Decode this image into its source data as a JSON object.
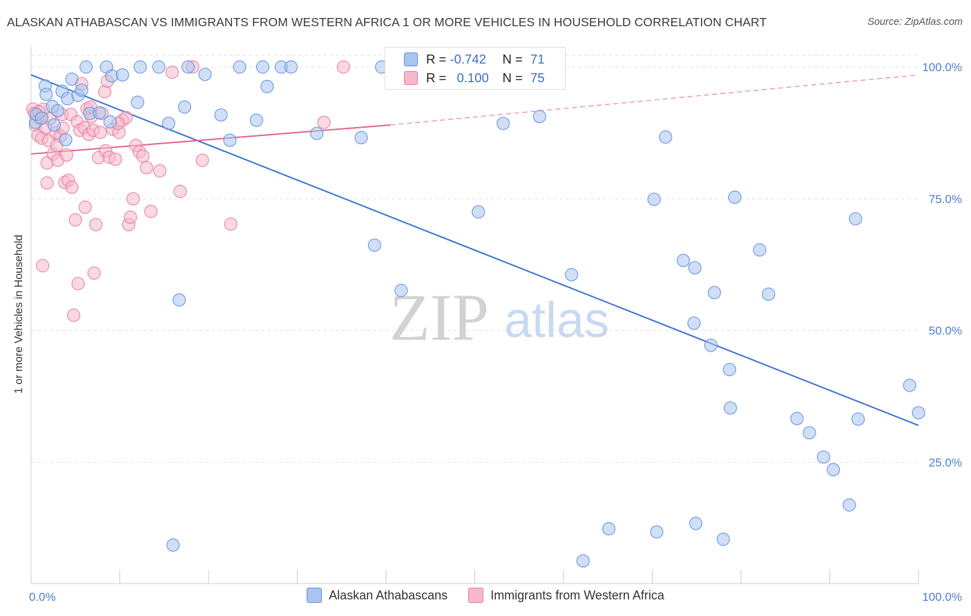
{
  "title": "ALASKAN ATHABASCAN VS IMMIGRANTS FROM WESTERN AFRICA 1 OR MORE VEHICLES IN HOUSEHOLD CORRELATION CHART",
  "source": "Source: ZipAtlas.com",
  "watermark": {
    "zip": "ZIP",
    "atlas": "atlas"
  },
  "colors": {
    "blue": "#5b8fdb",
    "blue_fill": "#a9c4ee",
    "blue_line": "#3a72d0",
    "pink": "#e8779c",
    "pink_fill": "#f6b9cc",
    "pink_line": "#e0648e",
    "axis_label": "#4a7fd0",
    "grid": "#e3e3e3"
  },
  "stats": {
    "r_label": "R =",
    "n_label": "N =",
    "rows": [
      {
        "series": "Alaskan Athabascans",
        "r": "-0.742",
        "n": "71"
      },
      {
        "series": "Immigrants from Western Africa",
        "r": "0.100",
        "n": "75"
      }
    ]
  },
  "chart_data": {
    "type": "scatter",
    "xlabel": "",
    "ylabel": "1 or more Vehicles in Household",
    "xlim": [
      0,
      100
    ],
    "ylim": [
      0,
      102
    ],
    "x_tick_labels": [
      "0.0%",
      "100.0%"
    ],
    "y_ticks": [
      25,
      50,
      75,
      100
    ],
    "y_tick_labels": [
      "25.0%",
      "50.0%",
      "75.0%",
      "100.0%"
    ],
    "grid": true,
    "legend": [
      "Alaskan Athabascans",
      "Immigrants from Western Africa"
    ],
    "series": [
      {
        "name": "Alaskan Athabascans",
        "color": "blue",
        "trend": {
          "x1": 0,
          "y1": 98.5,
          "x2": 100,
          "y2": 32.0,
          "dash_to": 100
        },
        "points": [
          [
            0.5,
            89.5
          ],
          [
            0.6,
            91
          ],
          [
            1.2,
            90.3
          ],
          [
            1.6,
            96.4
          ],
          [
            1.7,
            94.8
          ],
          [
            2.4,
            92.5
          ],
          [
            2.6,
            89
          ],
          [
            3.0,
            91.7
          ],
          [
            3.5,
            95.4
          ],
          [
            3.9,
            86.2
          ],
          [
            4.1,
            94
          ],
          [
            4.6,
            97.7
          ],
          [
            5.3,
            94.6
          ],
          [
            5.7,
            95.6
          ],
          [
            6.2,
            100
          ],
          [
            6.6,
            91.2
          ],
          [
            7.7,
            91.3
          ],
          [
            8.5,
            100
          ],
          [
            8.9,
            89.6
          ],
          [
            9.1,
            98.3
          ],
          [
            10.3,
            98.5
          ],
          [
            12.0,
            93.3
          ],
          [
            12.3,
            100
          ],
          [
            14.4,
            100
          ],
          [
            15.5,
            89.3
          ],
          [
            16.0,
            9.3
          ],
          [
            16.7,
            55.8
          ],
          [
            17.3,
            92.4
          ],
          [
            17.7,
            100
          ],
          [
            19.6,
            98.6
          ],
          [
            21.4,
            90.9
          ],
          [
            22.4,
            86.1
          ],
          [
            23.5,
            100
          ],
          [
            25.4,
            89.9
          ],
          [
            26.1,
            100
          ],
          [
            26.6,
            96.3
          ],
          [
            28.2,
            100
          ],
          [
            29.3,
            100
          ],
          [
            32.2,
            87.4
          ],
          [
            37.2,
            86.6
          ],
          [
            38.7,
            66.2
          ],
          [
            39.5,
            100
          ],
          [
            41.7,
            57.6
          ],
          [
            50.4,
            72.5
          ],
          [
            53.2,
            89.3
          ],
          [
            57.3,
            90.6
          ],
          [
            60.9,
            60.6
          ],
          [
            62.2,
            6.3
          ],
          [
            65.1,
            12.4
          ],
          [
            70.2,
            74.9
          ],
          [
            70.5,
            11.8
          ],
          [
            71.5,
            86.7
          ],
          [
            73.5,
            63.3
          ],
          [
            74.7,
            51.4
          ],
          [
            74.8,
            61.9
          ],
          [
            74.9,
            13.4
          ],
          [
            76.6,
            47.2
          ],
          [
            77.0,
            57.2
          ],
          [
            78.0,
            10.4
          ],
          [
            78.7,
            42.6
          ],
          [
            78.8,
            35.3
          ],
          [
            79.3,
            75.3
          ],
          [
            82.1,
            65.3
          ],
          [
            83.1,
            56.9
          ],
          [
            86.3,
            33.3
          ],
          [
            87.7,
            30.6
          ],
          [
            89.3,
            26
          ],
          [
            90.4,
            23.6
          ],
          [
            92.2,
            16.9
          ],
          [
            92.9,
            71.2
          ],
          [
            93.2,
            33.2
          ],
          [
            99.0,
            39.6
          ],
          [
            100.0,
            34.4
          ]
        ]
      },
      {
        "name": "Immigrants from Western Africa",
        "color": "pink",
        "trend": {
          "x1": 0,
          "y1": 83.5,
          "x2": 40.5,
          "y2": 89.0,
          "dash_to": 100,
          "dash_y2": 98.5
        },
        "points": [
          [
            0.2,
            92
          ],
          [
            0.4,
            91.2
          ],
          [
            0.5,
            89
          ],
          [
            0.8,
            87
          ],
          [
            1.0,
            90.3
          ],
          [
            1.2,
            86.5
          ],
          [
            1.4,
            92
          ],
          [
            1.6,
            88.5
          ],
          [
            1.8,
            81.8
          ],
          [
            1.8,
            78.0
          ],
          [
            2.0,
            86.0
          ],
          [
            2.1,
            90.2
          ],
          [
            2.5,
            83.5
          ],
          [
            2.8,
            87.5
          ],
          [
            3.0,
            82.3
          ],
          [
            3.3,
            86.9
          ],
          [
            3.5,
            91.0
          ],
          [
            3.8,
            78.1
          ],
          [
            4.0,
            83.3
          ],
          [
            4.2,
            78.5
          ],
          [
            4.5,
            91.0
          ],
          [
            4.6,
            77.2
          ],
          [
            5.0,
            71.0
          ],
          [
            5.2,
            89.6
          ],
          [
            5.5,
            88.0
          ],
          [
            5.7,
            96.8
          ],
          [
            6.0,
            88.5
          ],
          [
            6.1,
            73.4
          ],
          [
            6.3,
            92.1
          ],
          [
            6.5,
            87.2
          ],
          [
            6.8,
            90.6
          ],
          [
            7.0,
            88.0
          ],
          [
            7.3,
            70.1
          ],
          [
            7.6,
            82.8
          ],
          [
            7.8,
            87.6
          ],
          [
            8.0,
            91.2
          ],
          [
            8.3,
            95.3
          ],
          [
            8.4,
            84.1
          ],
          [
            8.6,
            97.3
          ],
          [
            8.8,
            82.9
          ],
          [
            9.2,
            88.2
          ],
          [
            9.5,
            82.5
          ],
          [
            9.9,
            87.6
          ],
          [
            10.3,
            89.9
          ],
          [
            10.7,
            90.4
          ],
          [
            11.0,
            70.1
          ],
          [
            11.2,
            71.5
          ],
          [
            11.5,
            75.0
          ],
          [
            11.8,
            85.1
          ],
          [
            12.2,
            83.9
          ],
          [
            12.6,
            83.1
          ],
          [
            13.0,
            80.9
          ],
          [
            13.5,
            72.6
          ],
          [
            14.5,
            80.3
          ],
          [
            15.9,
            99.0
          ],
          [
            16.8,
            76.4
          ],
          [
            18.2,
            100
          ],
          [
            19.3,
            82.3
          ],
          [
            22.5,
            70.2
          ],
          [
            33.0,
            89.5
          ],
          [
            35.2,
            100
          ],
          [
            1.3,
            62.3
          ],
          [
            5.3,
            58.9
          ],
          [
            7.1,
            60.9
          ],
          [
            4.8,
            52.9
          ],
          [
            9.8,
            89.3
          ],
          [
            0.9,
            91.5
          ],
          [
            2.9,
            85.1
          ],
          [
            6.7,
            92.4
          ],
          [
            3.6,
            88.4
          ]
        ]
      }
    ]
  }
}
